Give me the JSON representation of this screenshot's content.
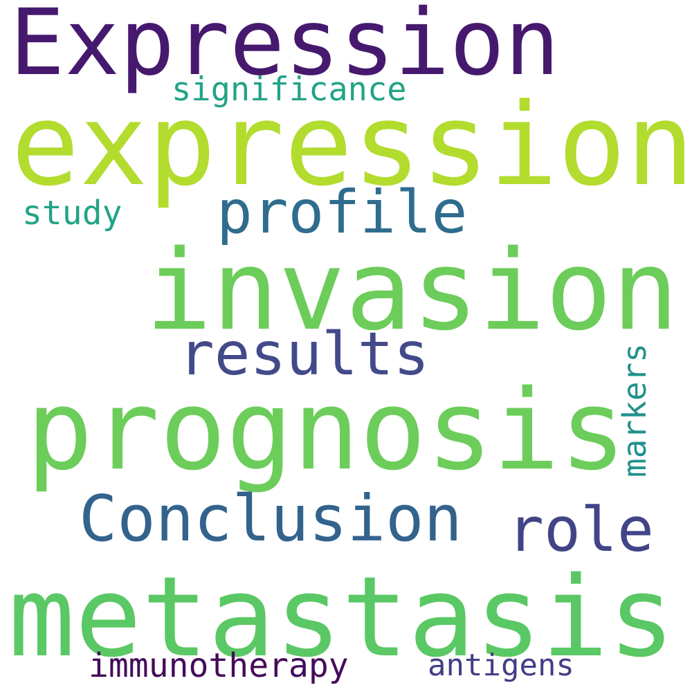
{
  "words": [
    {
      "id": "expression-cap",
      "text": "Expression",
      "color": "#46196e"
    },
    {
      "id": "expression",
      "text": "expression",
      "color": "#b2dc2e"
    },
    {
      "id": "significance",
      "text": "significance",
      "color": "#22a386"
    },
    {
      "id": "profile",
      "text": "profile",
      "color": "#2f6c8e"
    },
    {
      "id": "study",
      "text": "study",
      "color": "#22a386"
    },
    {
      "id": "invasion",
      "text": "invasion",
      "color": "#6ccd5a"
    },
    {
      "id": "results",
      "text": "results",
      "color": "#424a8a"
    },
    {
      "id": "prognosis",
      "text": "prognosis",
      "color": "#6ccd5a"
    },
    {
      "id": "markers",
      "text": "markers",
      "color": "#21918c"
    },
    {
      "id": "conclusion",
      "text": "Conclusion",
      "color": "#33638d"
    },
    {
      "id": "role",
      "text": "role",
      "color": "#414487"
    },
    {
      "id": "metastasis",
      "text": "metastasis",
      "color": "#5ac864"
    },
    {
      "id": "immunotherapy",
      "text": "immunotherapy",
      "color": "#440c5a"
    },
    {
      "id": "antigens",
      "text": "antigens",
      "color": "#433e85"
    }
  ]
}
